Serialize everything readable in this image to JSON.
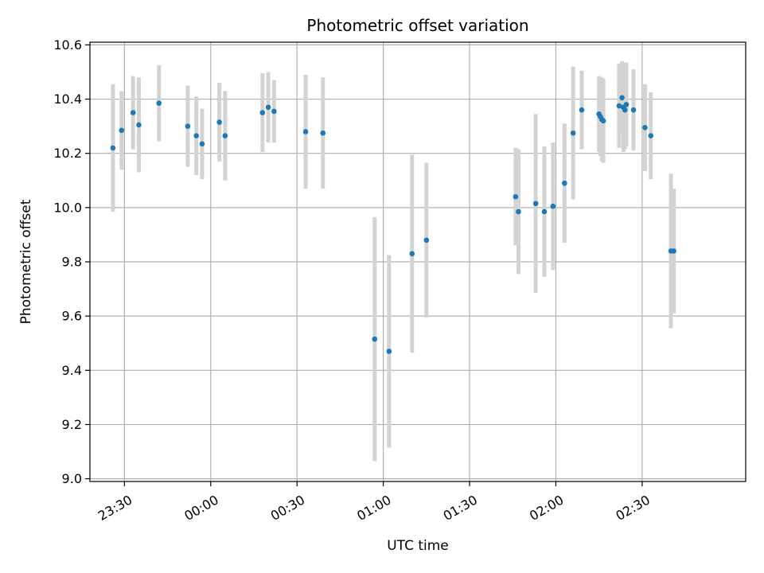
{
  "chart_data": {
    "type": "scatter",
    "title": "Photometric offset variation",
    "xlabel": "UTC time",
    "ylabel": "Photometric offset",
    "x_ticks": [
      "23:30",
      "00:00",
      "00:30",
      "01:00",
      "01:30",
      "02:00",
      "02:30"
    ],
    "y_ticks": [
      "9.0",
      "9.2",
      "9.4",
      "9.6",
      "9.8",
      "10.0",
      "10.2",
      "10.4",
      "10.6"
    ],
    "xlim": [
      "23:18",
      "03:06"
    ],
    "ylim": [
      8.99,
      10.61
    ],
    "grid": true,
    "colors": {
      "point": "#1f77b4",
      "errorbar": "#d3d3d3",
      "grid": "#b0b0b0"
    },
    "series": [
      {
        "points": [
          {
            "x": "23:26",
            "y": 10.22,
            "err": 0.235
          },
          {
            "x": "23:29",
            "y": 10.285,
            "err": 0.145
          },
          {
            "x": "23:33",
            "y": 10.35,
            "err": 0.135
          },
          {
            "x": "23:35",
            "y": 10.305,
            "err": 0.175
          },
          {
            "x": "23:42",
            "y": 10.385,
            "err": 0.14
          },
          {
            "x": "23:52",
            "y": 10.3,
            "err": 0.15
          },
          {
            "x": "23:55",
            "y": 10.265,
            "err": 0.145
          },
          {
            "x": "23:57",
            "y": 10.235,
            "err": 0.13
          },
          {
            "x": "00:03",
            "y": 10.315,
            "err": 0.145
          },
          {
            "x": "00:05",
            "y": 10.265,
            "err": 0.165
          },
          {
            "x": "00:18",
            "y": 10.35,
            "err": 0.145
          },
          {
            "x": "00:20",
            "y": 10.37,
            "err": 0.13
          },
          {
            "x": "00:22",
            "y": 10.355,
            "err": 0.115
          },
          {
            "x": "00:33",
            "y": 10.28,
            "err": 0.21
          },
          {
            "x": "00:39",
            "y": 10.275,
            "err": 0.205
          },
          {
            "x": "00:57",
            "y": 9.515,
            "err": 0.45
          },
          {
            "x": "01:02",
            "y": 9.47,
            "err": 0.355
          },
          {
            "x": "01:10",
            "y": 9.83,
            "err": 0.365
          },
          {
            "x": "01:15",
            "y": 9.88,
            "err": 0.285
          },
          {
            "x": "01:46",
            "y": 10.04,
            "err": 0.18
          },
          {
            "x": "01:47",
            "y": 9.985,
            "err": 0.23
          },
          {
            "x": "01:53",
            "y": 10.015,
            "err": 0.33
          },
          {
            "x": "01:56",
            "y": 9.985,
            "err": 0.24
          },
          {
            "x": "01:59",
            "y": 10.005,
            "err": 0.235
          },
          {
            "x": "02:03",
            "y": 10.09,
            "err": 0.22
          },
          {
            "x": "02:06",
            "y": 10.275,
            "err": 0.245
          },
          {
            "x": "02:09",
            "y": 10.36,
            "err": 0.145
          },
          {
            "x": "02:15",
            "y": 10.345,
            "err": 0.14
          },
          {
            "x": "02:15:30",
            "y": 10.335,
            "err": 0.145
          },
          {
            "x": "02:16",
            "y": 10.325,
            "err": 0.155
          },
          {
            "x": "02:16:30",
            "y": 10.32,
            "err": 0.155
          },
          {
            "x": "02:22",
            "y": 10.375,
            "err": 0.155
          },
          {
            "x": "02:23",
            "y": 10.405,
            "err": 0.135
          },
          {
            "x": "02:23:30",
            "y": 10.37,
            "err": 0.165
          },
          {
            "x": "02:24",
            "y": 10.36,
            "err": 0.145
          },
          {
            "x": "02:24:30",
            "y": 10.38,
            "err": 0.155
          },
          {
            "x": "02:27",
            "y": 10.36,
            "err": 0.15
          },
          {
            "x": "02:31",
            "y": 10.295,
            "err": 0.16
          },
          {
            "x": "02:33",
            "y": 10.265,
            "err": 0.16
          },
          {
            "x": "02:40",
            "y": 9.84,
            "err": 0.285
          },
          {
            "x": "02:41",
            "y": 9.84,
            "err": 0.23
          }
        ]
      }
    ]
  }
}
